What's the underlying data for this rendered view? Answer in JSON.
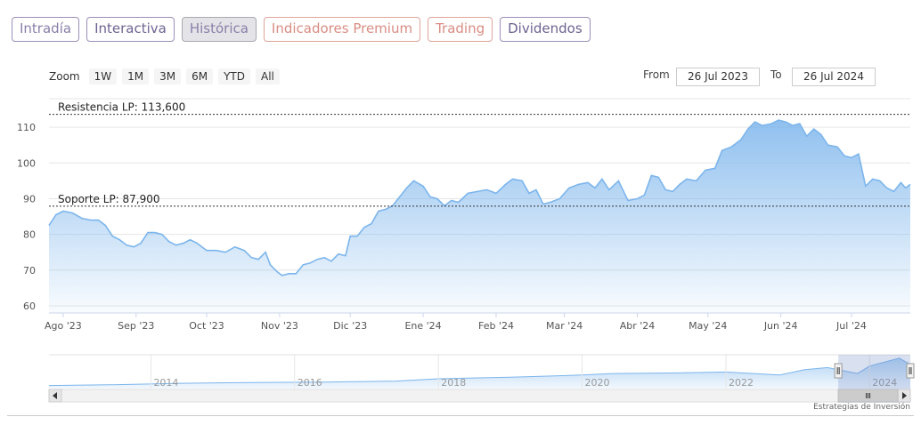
{
  "tabs": [
    {
      "label": "Intradía",
      "style": "normal"
    },
    {
      "label": "Interactiva",
      "style": "dark"
    },
    {
      "label": "Histórica",
      "style": "active"
    },
    {
      "label": "Indicadores Premium",
      "style": "premium"
    },
    {
      "label": "Trading",
      "style": "premium"
    },
    {
      "label": "Dividendos",
      "style": "dark"
    }
  ],
  "zoom": {
    "label": "Zoom",
    "buttons": [
      "1W",
      "1M",
      "3M",
      "6M",
      "YTD",
      "All"
    ]
  },
  "range": {
    "from_label": "From",
    "from_value": "26 Jul 2023",
    "to_label": "To",
    "to_value": "26 Jul 2024"
  },
  "credit": "Estrategias de Inversión",
  "colors": {
    "line": "#7cb5ec",
    "fill_top": "#7cb5ec",
    "grid": "#e6e6e6"
  },
  "chart_data": {
    "type": "area",
    "title": "",
    "xlabel": "",
    "ylabel": "",
    "ylim": [
      58,
      117
    ],
    "y_ticks": [
      60,
      70,
      80,
      90,
      100,
      110
    ],
    "x_ticks": [
      "Ago '23",
      "Sep '23",
      "Oct '23",
      "Nov '23",
      "Dic '23",
      "Ene '24",
      "Feb '24",
      "Mar '24",
      "Abr '24",
      "May '24",
      "Jun '24",
      "Jul '24"
    ],
    "x_range": [
      "2023-07-26",
      "2024-07-26"
    ],
    "x_tick_dates": [
      "2023-08-01",
      "2023-09-01",
      "2023-10-01",
      "2023-11-01",
      "2023-12-01",
      "2024-01-01",
      "2024-02-01",
      "2024-03-01",
      "2024-04-01",
      "2024-05-01",
      "2024-06-01",
      "2024-07-01"
    ],
    "series": [
      {
        "name": "",
        "points": [
          [
            "2023-07-26",
            82.5
          ],
          [
            "2023-07-29",
            85.5
          ],
          [
            "2023-08-01",
            86.5
          ],
          [
            "2023-08-05",
            86.0
          ],
          [
            "2023-08-09",
            84.5
          ],
          [
            "2023-08-13",
            84.0
          ],
          [
            "2023-08-16",
            84.0
          ],
          [
            "2023-08-19",
            82.5
          ],
          [
            "2023-08-22",
            79.5
          ],
          [
            "2023-08-25",
            78.5
          ],
          [
            "2023-08-28",
            77.0
          ],
          [
            "2023-08-31",
            76.5
          ],
          [
            "2023-09-03",
            77.5
          ],
          [
            "2023-09-06",
            80.5
          ],
          [
            "2023-09-09",
            80.5
          ],
          [
            "2023-09-12",
            80.0
          ],
          [
            "2023-09-15",
            78.0
          ],
          [
            "2023-09-18",
            77.0
          ],
          [
            "2023-09-21",
            77.5
          ],
          [
            "2023-09-24",
            78.5
          ],
          [
            "2023-09-27",
            77.5
          ],
          [
            "2023-10-01",
            75.5
          ],
          [
            "2023-10-05",
            75.5
          ],
          [
            "2023-10-09",
            75.0
          ],
          [
            "2023-10-13",
            76.5
          ],
          [
            "2023-10-17",
            75.5
          ],
          [
            "2023-10-20",
            73.5
          ],
          [
            "2023-10-23",
            73.0
          ],
          [
            "2023-10-26",
            75.0
          ],
          [
            "2023-10-28",
            71.5
          ],
          [
            "2023-10-31",
            69.5
          ],
          [
            "2023-11-02",
            68.5
          ],
          [
            "2023-11-05",
            69.0
          ],
          [
            "2023-11-08",
            69.0
          ],
          [
            "2023-11-11",
            71.5
          ],
          [
            "2023-11-14",
            72.0
          ],
          [
            "2023-11-17",
            73.0
          ],
          [
            "2023-11-20",
            73.5
          ],
          [
            "2023-11-23",
            72.5
          ],
          [
            "2023-11-26",
            74.5
          ],
          [
            "2023-11-29",
            74.0
          ],
          [
            "2023-12-01",
            79.5
          ],
          [
            "2023-12-04",
            79.5
          ],
          [
            "2023-12-07",
            82.0
          ],
          [
            "2023-12-10",
            83.0
          ],
          [
            "2023-12-13",
            86.5
          ],
          [
            "2023-12-16",
            87.0
          ],
          [
            "2023-12-19",
            88.0
          ],
          [
            "2023-12-22",
            90.5
          ],
          [
            "2023-12-25",
            93.0
          ],
          [
            "2023-12-28",
            95.0
          ],
          [
            "2024-01-01",
            93.5
          ],
          [
            "2024-01-04",
            90.5
          ],
          [
            "2024-01-07",
            90.0
          ],
          [
            "2024-01-10",
            88.0
          ],
          [
            "2024-01-13",
            89.5
          ],
          [
            "2024-01-16",
            89.0
          ],
          [
            "2024-01-20",
            91.5
          ],
          [
            "2024-01-24",
            92.0
          ],
          [
            "2024-01-28",
            92.5
          ],
          [
            "2024-02-01",
            91.5
          ],
          [
            "2024-02-05",
            94.0
          ],
          [
            "2024-02-08",
            95.5
          ],
          [
            "2024-02-12",
            95.0
          ],
          [
            "2024-02-15",
            91.5
          ],
          [
            "2024-02-18",
            92.5
          ],
          [
            "2024-02-21",
            88.5
          ],
          [
            "2024-02-24",
            89.0
          ],
          [
            "2024-02-28",
            90.0
          ],
          [
            "2024-03-03",
            93.0
          ],
          [
            "2024-03-07",
            94.0
          ],
          [
            "2024-03-11",
            94.5
          ],
          [
            "2024-03-14",
            93.0
          ],
          [
            "2024-03-17",
            95.5
          ],
          [
            "2024-03-20",
            92.5
          ],
          [
            "2024-03-24",
            95.0
          ],
          [
            "2024-03-28",
            89.5
          ],
          [
            "2024-04-01",
            90.0
          ],
          [
            "2024-04-04",
            91.0
          ],
          [
            "2024-04-07",
            96.5
          ],
          [
            "2024-04-10",
            96.0
          ],
          [
            "2024-04-13",
            92.5
          ],
          [
            "2024-04-16",
            92.0
          ],
          [
            "2024-04-19",
            94.0
          ],
          [
            "2024-04-22",
            95.5
          ],
          [
            "2024-04-26",
            95.0
          ],
          [
            "2024-04-30",
            98.0
          ],
          [
            "2024-05-04",
            98.5
          ],
          [
            "2024-05-07",
            103.5
          ],
          [
            "2024-05-11",
            104.5
          ],
          [
            "2024-05-15",
            106.5
          ],
          [
            "2024-05-18",
            109.5
          ],
          [
            "2024-05-21",
            111.5
          ],
          [
            "2024-05-24",
            110.5
          ],
          [
            "2024-05-28",
            111.0
          ],
          [
            "2024-05-31",
            112.0
          ],
          [
            "2024-06-03",
            111.5
          ],
          [
            "2024-06-06",
            110.5
          ],
          [
            "2024-06-09",
            111.0
          ],
          [
            "2024-06-12",
            107.5
          ],
          [
            "2024-06-15",
            109.5
          ],
          [
            "2024-06-18",
            108.0
          ],
          [
            "2024-06-21",
            105.0
          ],
          [
            "2024-06-25",
            104.5
          ],
          [
            "2024-06-28",
            102.0
          ],
          [
            "2024-07-01",
            101.5
          ],
          [
            "2024-07-04",
            102.5
          ],
          [
            "2024-07-07",
            93.5
          ],
          [
            "2024-07-10",
            95.5
          ],
          [
            "2024-07-13",
            95.0
          ],
          [
            "2024-07-16",
            93.0
          ],
          [
            "2024-07-19",
            92.0
          ],
          [
            "2024-07-22",
            94.5
          ],
          [
            "2024-07-24",
            93.0
          ],
          [
            "2024-07-26",
            94.0
          ]
        ]
      }
    ],
    "annotations": [
      {
        "label": "Resistencia LP: 113,600",
        "y": 113.6,
        "style": "dashed"
      },
      {
        "label": "Soporte LP: 87,900",
        "y": 87.9,
        "style": "dashed"
      }
    ],
    "navigator": {
      "x_ticks": [
        "2014",
        "2016",
        "2018",
        "2020",
        "2022",
        "2024"
      ],
      "x_range": [
        "2012-08-01",
        "2024-07-26"
      ],
      "points": [
        [
          "2012-08-01",
          38
        ],
        [
          "2013-06-01",
          40
        ],
        [
          "2014-06-01",
          44
        ],
        [
          "2015-06-01",
          46
        ],
        [
          "2016-06-01",
          47
        ],
        [
          "2017-06-01",
          50
        ],
        [
          "2018-01-01",
          56
        ],
        [
          "2019-01-01",
          60
        ],
        [
          "2020-01-01",
          66
        ],
        [
          "2020-06-01",
          70
        ],
        [
          "2021-06-01",
          72
        ],
        [
          "2022-01-01",
          74
        ],
        [
          "2022-10-01",
          66
        ],
        [
          "2023-02-01",
          80
        ],
        [
          "2023-06-01",
          86
        ],
        [
          "2023-11-01",
          70
        ],
        [
          "2024-01-01",
          90
        ],
        [
          "2024-06-01",
          111
        ],
        [
          "2024-07-26",
          94
        ]
      ],
      "selected_range": [
        "2023-07-26",
        "2024-07-26"
      ]
    }
  }
}
